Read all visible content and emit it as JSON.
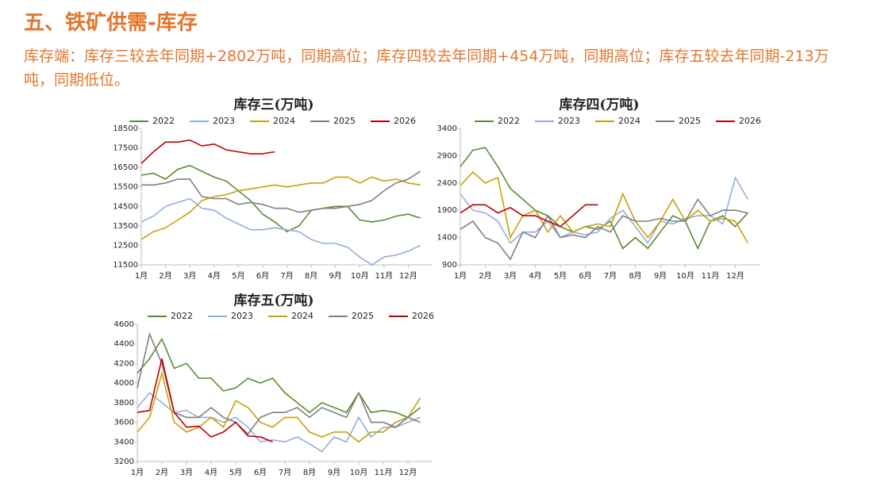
{
  "title": "五、铁矿供需-库存",
  "subtitle": "库存端：库存三较去年同期+2802万吨，同期高位；库存四较去年同期+454万吨，同期高位；库存五较去年同期-213万吨，同期低位。",
  "chart_data": [
    {
      "type": "line",
      "title": "库存三(万吨)",
      "legend": "top",
      "x": [
        1,
        1.5,
        2,
        2.5,
        3,
        3.5,
        4,
        4.5,
        5,
        5.5,
        6,
        6.5,
        7,
        7.5,
        8,
        8.5,
        9,
        9.5,
        10,
        10.5,
        11,
        11.5,
        12,
        12.5
      ],
      "xlim": [
        1,
        13
      ],
      "xticks": [
        {
          "value": 1,
          "label": "1月"
        },
        {
          "value": 2,
          "label": "2月"
        },
        {
          "value": 3,
          "label": "3月"
        },
        {
          "value": 4,
          "label": "4月"
        },
        {
          "value": 5,
          "label": "5月"
        },
        {
          "value": 6,
          "label": "6月"
        },
        {
          "value": 7,
          "label": "7月"
        },
        {
          "value": 8,
          "label": "8月"
        },
        {
          "value": 9,
          "label": "9月"
        },
        {
          "value": 10,
          "label": "10月"
        },
        {
          "value": 11,
          "label": "11月"
        },
        {
          "value": 12,
          "label": "12月"
        }
      ],
      "ylim": [
        11500,
        18500
      ],
      "yticks": [
        11500,
        12500,
        13500,
        14500,
        15500,
        16500,
        17500,
        18500
      ],
      "series": [
        {
          "name": "2022",
          "color": "#5b8c2e",
          "values": [
            16100,
            16200,
            15900,
            16400,
            16600,
            16300,
            16000,
            15800,
            15300,
            14800,
            14100,
            13700,
            13200,
            13500,
            14300,
            14400,
            14500,
            14500,
            13800,
            13700,
            13800,
            14000,
            14100,
            13900
          ]
        },
        {
          "name": "2023",
          "color": "#94aedd",
          "values": [
            13700,
            14000,
            14500,
            14700,
            14900,
            14400,
            14300,
            13900,
            13600,
            13300,
            13300,
            13400,
            13300,
            13200,
            12800,
            12600,
            12600,
            12400,
            11900,
            11500,
            11900,
            12000,
            12200,
            12500
          ]
        },
        {
          "name": "2024",
          "color": "#c9a00a",
          "values": [
            12800,
            13200,
            13400,
            13800,
            14200,
            14800,
            15000,
            15100,
            15300,
            15400,
            15500,
            15600,
            15500,
            15600,
            15700,
            15700,
            16000,
            16000,
            15700,
            16000,
            15800,
            15900,
            15700,
            15600
          ]
        },
        {
          "name": "2025",
          "color": "#808080",
          "values": [
            15600,
            15600,
            15700,
            15900,
            15900,
            15000,
            14900,
            14900,
            14600,
            14700,
            14600,
            14400,
            14400,
            14200,
            14300,
            14400,
            14400,
            14500,
            14600,
            14800,
            15300,
            15700,
            15900,
            16300
          ]
        },
        {
          "name": "2026",
          "color": "#c00000",
          "values": [
            16700,
            17300,
            17800,
            17800,
            17900,
            17600,
            17700,
            17400,
            17300,
            17200,
            17200,
            17300,
            null,
            null,
            null,
            null,
            null,
            null,
            null,
            null,
            null,
            null,
            null,
            null
          ]
        }
      ]
    },
    {
      "type": "line",
      "title": "库存四(万吨)",
      "legend": "top",
      "x": [
        1,
        1.5,
        2,
        2.5,
        3,
        3.5,
        4,
        4.5,
        5,
        5.5,
        6,
        6.5,
        7,
        7.5,
        8,
        8.5,
        9,
        9.5,
        10,
        10.5,
        11,
        11.5,
        12,
        12.5
      ],
      "xlim": [
        1,
        13
      ],
      "xticks": [
        {
          "value": 1,
          "label": "1月"
        },
        {
          "value": 2,
          "label": "2月"
        },
        {
          "value": 3,
          "label": "3月"
        },
        {
          "value": 4,
          "label": "4月"
        },
        {
          "value": 5,
          "label": "5月"
        },
        {
          "value": 6,
          "label": "6月"
        },
        {
          "value": 7,
          "label": "7月"
        },
        {
          "value": 8,
          "label": "8月"
        },
        {
          "value": 9,
          "label": "9月"
        },
        {
          "value": 10,
          "label": "10月"
        },
        {
          "value": 11,
          "label": "11月"
        },
        {
          "value": 12,
          "label": "12月"
        }
      ],
      "ylim": [
        900,
        3400
      ],
      "yticks": [
        900,
        1400,
        1900,
        2400,
        2900,
        3400
      ],
      "series": [
        {
          "name": "2022",
          "color": "#5b8c2e",
          "values": [
            2700,
            3000,
            3050,
            2700,
            2300,
            2100,
            1900,
            1800,
            1600,
            1500,
            1600,
            1550,
            1700,
            1200,
            1400,
            1200,
            1500,
            1800,
            1700,
            1200,
            1700,
            1800,
            1600,
            1850
          ]
        },
        {
          "name": "2023",
          "color": "#94aedd",
          "values": [
            2200,
            1900,
            1850,
            1700,
            1300,
            1500,
            1500,
            1700,
            1400,
            1500,
            1450,
            1500,
            1750,
            1900,
            1600,
            1300,
            1700,
            1650,
            1750,
            1800,
            1800,
            1650,
            2500,
            2100
          ]
        },
        {
          "name": "2024",
          "color": "#c9a00a",
          "values": [
            2350,
            2600,
            2400,
            2500,
            1400,
            1800,
            1900,
            1500,
            1800,
            1500,
            1600,
            1650,
            1600,
            2200,
            1700,
            1400,
            1700,
            2100,
            1700,
            1900,
            1700,
            1750,
            1700,
            1300
          ]
        },
        {
          "name": "2025",
          "color": "#808080",
          "values": [
            1550,
            1700,
            1400,
            1300,
            1000,
            1500,
            1400,
            1800,
            1400,
            1450,
            1400,
            1600,
            1500,
            1800,
            1700,
            1700,
            1750,
            1700,
            1700,
            2100,
            1800,
            1900,
            1900,
            1850
          ]
        },
        {
          "name": "2026",
          "color": "#c00000",
          "values": [
            1850,
            2000,
            2000,
            1850,
            1950,
            1800,
            1800,
            1700,
            1600,
            1800,
            2000,
            2000,
            null,
            null,
            null,
            null,
            null,
            null,
            null,
            null,
            null,
            null,
            null,
            null
          ]
        }
      ]
    },
    {
      "type": "line",
      "title": "库存五(万吨)",
      "legend": "top",
      "x": [
        1,
        1.5,
        2,
        2.5,
        3,
        3.5,
        4,
        4.5,
        5,
        5.5,
        6,
        6.5,
        7,
        7.5,
        8,
        8.5,
        9,
        9.5,
        10,
        10.5,
        11,
        11.5,
        12,
        12.5
      ],
      "xlim": [
        1,
        13
      ],
      "xticks": [
        {
          "value": 1,
          "label": "1月"
        },
        {
          "value": 2,
          "label": "2月"
        },
        {
          "value": 3,
          "label": "3月"
        },
        {
          "value": 4,
          "label": "4月"
        },
        {
          "value": 5,
          "label": "5月"
        },
        {
          "value": 6,
          "label": "6月"
        },
        {
          "value": 7,
          "label": "7月"
        },
        {
          "value": 8,
          "label": "8月"
        },
        {
          "value": 9,
          "label": "9月"
        },
        {
          "value": 10,
          "label": "10月"
        },
        {
          "value": 11,
          "label": "11月"
        },
        {
          "value": 12,
          "label": "12月"
        }
      ],
      "ylim": [
        3200,
        4600
      ],
      "yticks": [
        3200,
        3400,
        3600,
        3800,
        4000,
        4200,
        4400,
        4600
      ],
      "series": [
        {
          "name": "2022",
          "color": "#5b8c2e",
          "values": [
            4100,
            4250,
            4450,
            4150,
            4200,
            4050,
            4050,
            3920,
            3950,
            4050,
            4000,
            4050,
            3900,
            3800,
            3700,
            3800,
            3750,
            3700,
            3900,
            3700,
            3720,
            3700,
            3650,
            3750
          ]
        },
        {
          "name": "2023",
          "color": "#94aedd",
          "values": [
            3750,
            3900,
            3800,
            3700,
            3720,
            3650,
            3650,
            3600,
            3650,
            3550,
            3400,
            3420,
            3400,
            3450,
            3380,
            3300,
            3450,
            3400,
            3650,
            3450,
            3550,
            3550,
            3600,
            3650
          ]
        },
        {
          "name": "2024",
          "color": "#c9a00a",
          "values": [
            3500,
            3650,
            4100,
            3600,
            3500,
            3550,
            3650,
            3550,
            3820,
            3750,
            3600,
            3550,
            3650,
            3650,
            3500,
            3450,
            3500,
            3500,
            3400,
            3500,
            3500,
            3600,
            3650,
            3850
          ]
        },
        {
          "name": "2025",
          "color": "#808080",
          "values": [
            3950,
            4500,
            4200,
            3700,
            3650,
            3650,
            3750,
            3650,
            3600,
            3480,
            3650,
            3700,
            3700,
            3750,
            3650,
            3750,
            3700,
            3650,
            3900,
            3600,
            3600,
            3550,
            3650,
            3600
          ]
        },
        {
          "name": "2026",
          "color": "#c00000",
          "values": [
            3700,
            3720,
            4250,
            3700,
            3550,
            3560,
            3450,
            3500,
            3600,
            3460,
            3450,
            3400,
            null,
            null,
            null,
            null,
            null,
            null,
            null,
            null,
            null,
            null,
            null,
            null
          ]
        }
      ]
    }
  ]
}
